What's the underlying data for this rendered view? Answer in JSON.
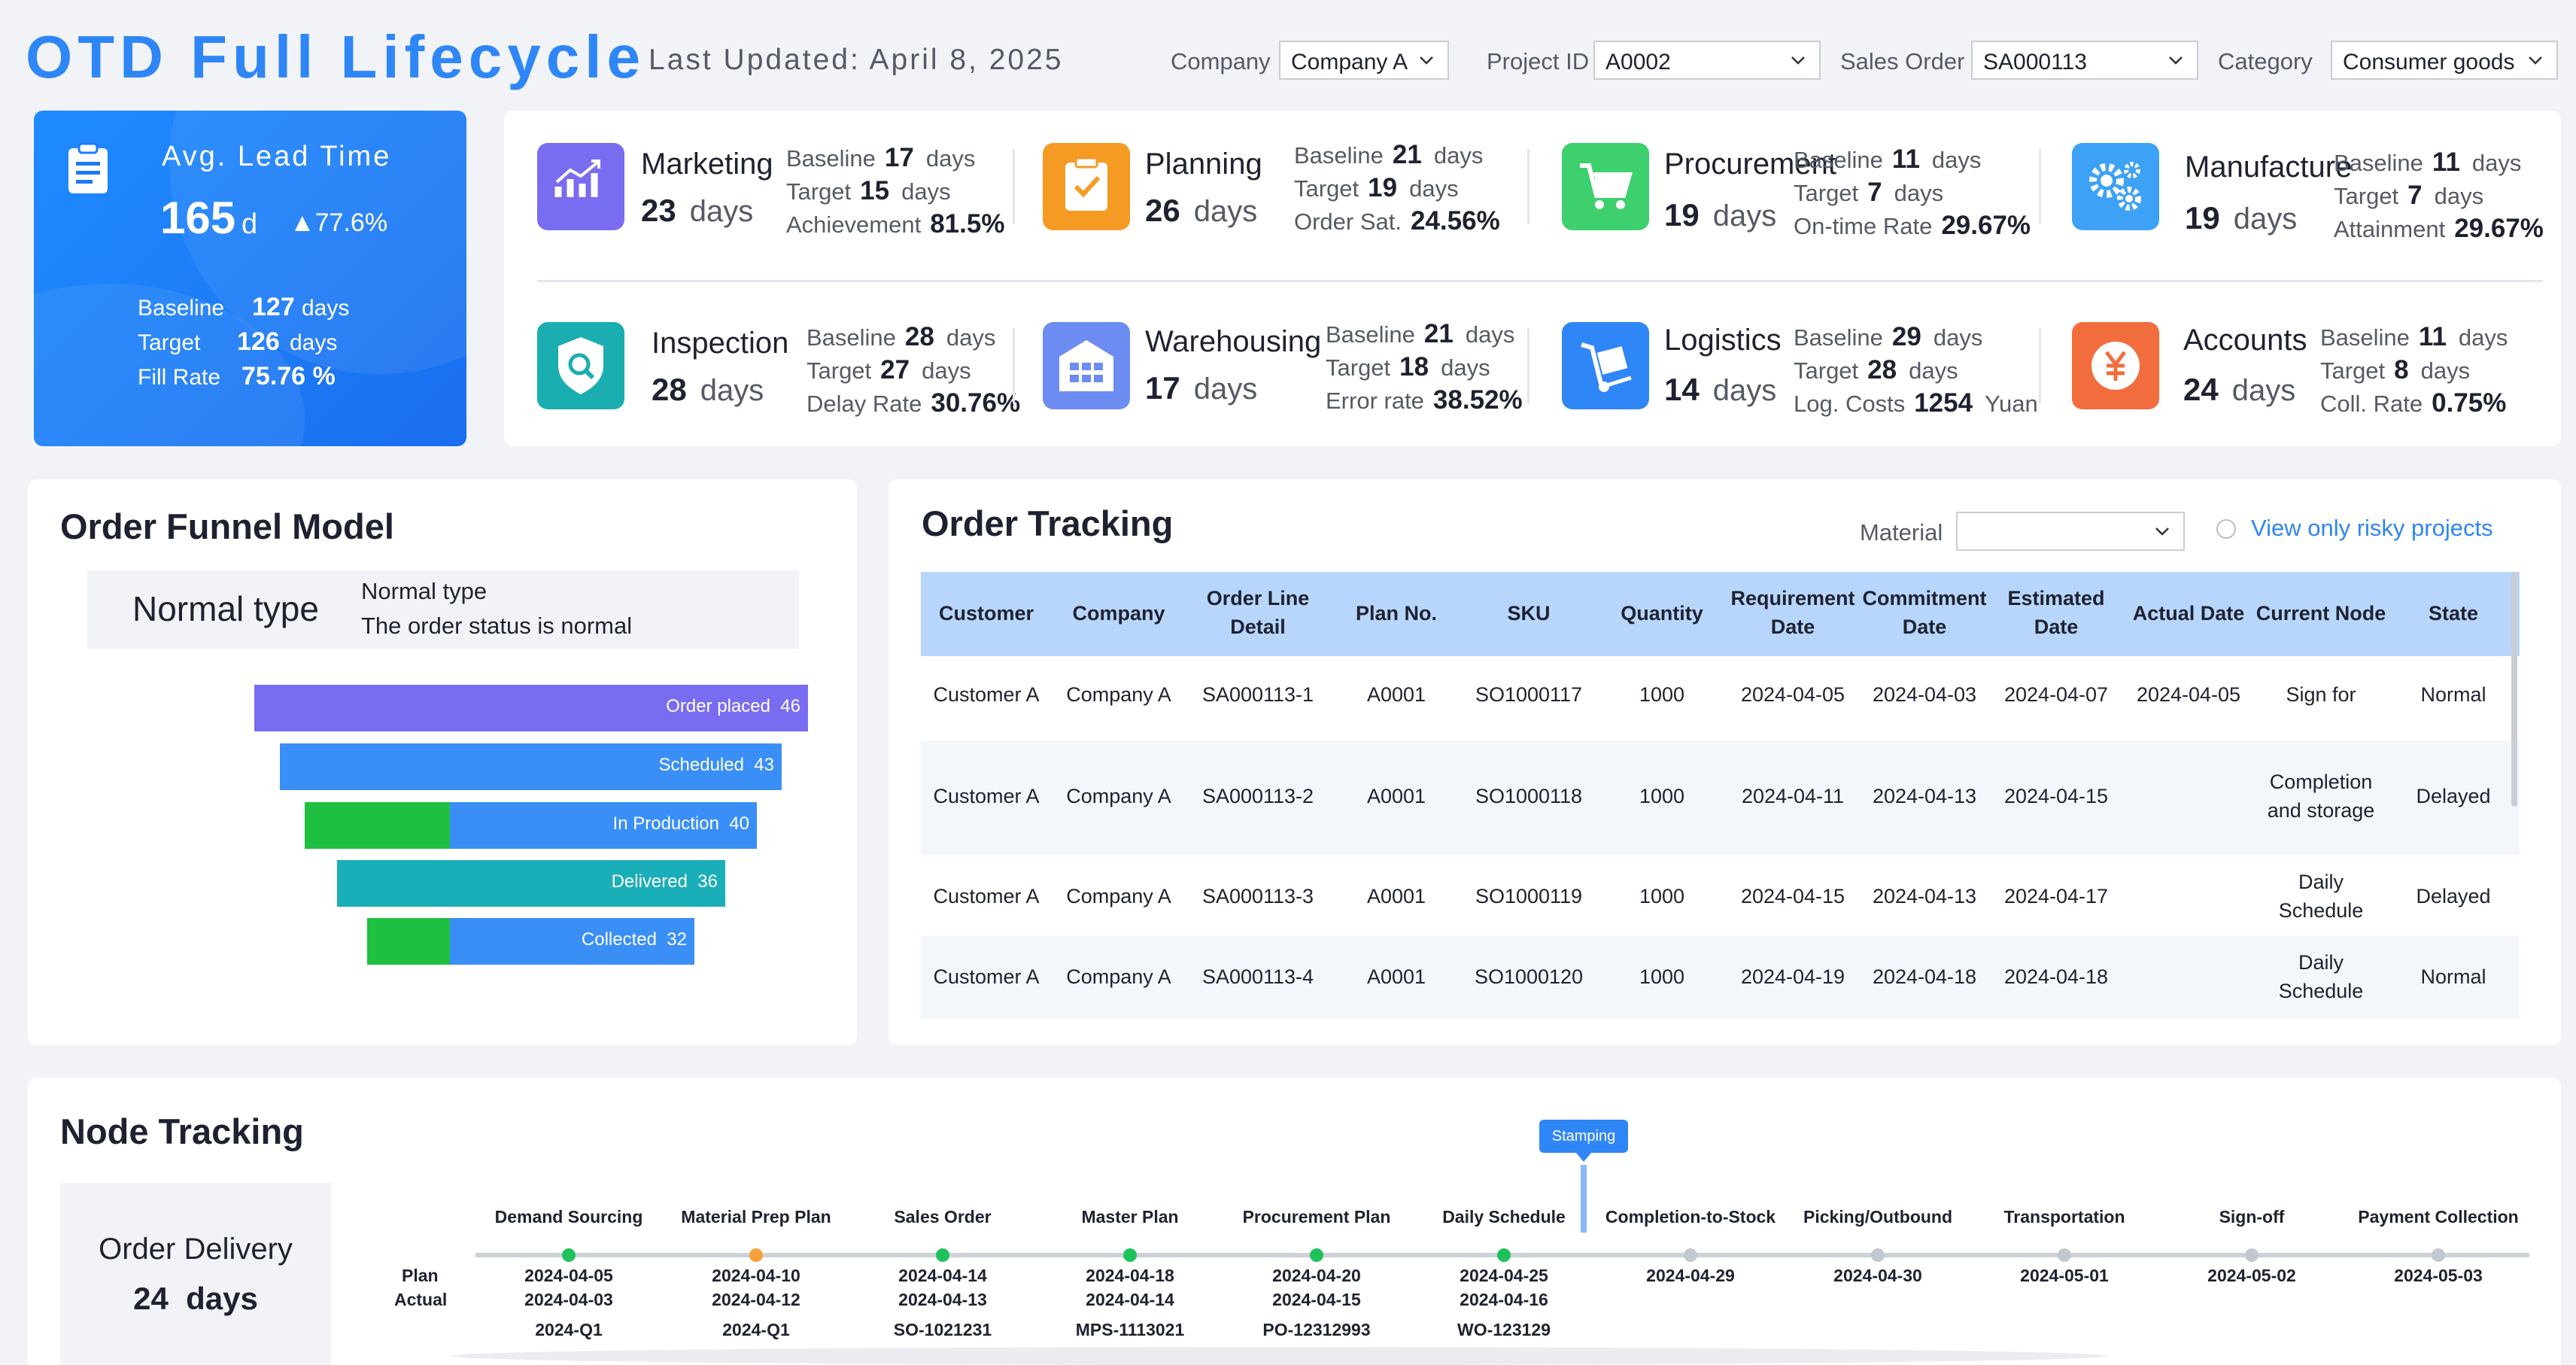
{
  "header": {
    "title": "OTD Full Lifecycle",
    "updated": "Last Updated: April 8, 2025",
    "filters": [
      {
        "label": "Company",
        "value": "Company A"
      },
      {
        "label": "Project ID",
        "value": "A0002"
      },
      {
        "label": "Sales Order",
        "value": "SA000113"
      },
      {
        "label": "Category",
        "value": "Consumer goods"
      }
    ]
  },
  "lead": {
    "title": "Avg. Lead Time",
    "value": "165",
    "unit": "d",
    "trend": "▲77.6%",
    "baseline_label": "Baseline",
    "baseline_value": "127",
    "baseline_unit": "days",
    "target_label": "Target",
    "target_value": "126",
    "target_unit": "days",
    "fill_label": "Fill Rate",
    "fill_value": "75.76 %"
  },
  "metrics": [
    {
      "name": "Marketing",
      "value": "23",
      "unit": "days",
      "icon": "chart-icon",
      "color": "#7a6cf0",
      "l1": "Baseline",
      "v1": "17",
      "u1": "days",
      "l2": "Target",
      "v2": "15",
      "u2": "days",
      "l3": "Achievement",
      "v3": "81.5%"
    },
    {
      "name": "Planning",
      "value": "26",
      "unit": "days",
      "icon": "clipboard-check-icon",
      "color": "#f59a23",
      "l1": "Baseline",
      "v1": "21",
      "u1": "days",
      "l2": "Target",
      "v2": "19",
      "u2": "days",
      "l3": "Order Sat.",
      "v3": "24.56%"
    },
    {
      "name": "Procurement",
      "value": "19",
      "unit": "days",
      "icon": "cart-icon",
      "color": "#3ecf6e",
      "l1": "Baseline",
      "v1": "11",
      "u1": "days",
      "l2": "Target",
      "v2": "7",
      "u2": "days",
      "l3": "On-time Rate",
      "v3": "29.67%"
    },
    {
      "name": "Manufacture",
      "value": "19",
      "unit": "days",
      "icon": "gears-icon",
      "color": "#3da2f5",
      "l1": "Baseline",
      "v1": "11",
      "u1": "days",
      "l2": "Target",
      "v2": "7",
      "u2": "days",
      "l3": "Attainment",
      "v3": "29.67%"
    },
    {
      "name": "Inspection",
      "value": "28",
      "unit": "days",
      "icon": "shield-search-icon",
      "color": "#1aaeb0",
      "l1": "Baseline",
      "v1": "28",
      "u1": "days",
      "l2": "Target",
      "v2": "27",
      "u2": "days",
      "l3": "Delay Rate",
      "v3": "30.76%"
    },
    {
      "name": "Warehousing",
      "value": "17",
      "unit": "days",
      "icon": "warehouse-icon",
      "color": "#6c8cf2",
      "l1": "Baseline",
      "v1": "21",
      "u1": "days",
      "l2": "Target",
      "v2": "18",
      "u2": "days",
      "l3": "Error rate",
      "v3": "38.52%"
    },
    {
      "name": "Logistics",
      "value": "14",
      "unit": "days",
      "icon": "cart-box-icon",
      "color": "#2f86f6",
      "l1": "Baseline",
      "v1": "29",
      "u1": "days",
      "l2": "Target",
      "v2": "28",
      "u2": "days",
      "l3": "Log. Costs",
      "v3": "1254",
      "u3": "Yuan"
    },
    {
      "name": "Accounts",
      "value": "24",
      "unit": "days",
      "icon": "yen-icon",
      "color": "#f26d3d",
      "l1": "Baseline",
      "v1": "11",
      "u1": "days",
      "l2": "Target",
      "v2": "8",
      "u2": "days",
      "l3": "Coll. Rate",
      "v3": "0.75%"
    }
  ],
  "funnel": {
    "title": "Order Funnel Model",
    "type_label": "Normal type",
    "type_title": "Normal type",
    "type_desc": "The order status is normal",
    "chart_data": {
      "type": "bar",
      "categories": [
        "Order placed",
        "Scheduled",
        "In Production",
        "Delivered",
        "Collected"
      ],
      "values": [
        46,
        43,
        40,
        36,
        32
      ],
      "colors": [
        "#7a6cf0",
        "#3a8ff7",
        "#3a8ff7",
        "#1aaeb8",
        "#3a8ff7"
      ]
    }
  },
  "tracking": {
    "title": "Order Tracking",
    "material_label": "Material",
    "material_value": "",
    "risky_label": "View only risky projects",
    "columns": [
      [
        "Customer"
      ],
      [
        "Company"
      ],
      [
        "Order Line",
        "Detail"
      ],
      [
        "Plan No."
      ],
      [
        "SKU"
      ],
      [
        "Quantity"
      ],
      [
        "Requirement",
        "Date"
      ],
      [
        "Commitment",
        "Date"
      ],
      [
        "Estimated",
        "Date"
      ],
      [
        "Actual Date"
      ],
      [
        "Current Node"
      ],
      [
        "State"
      ]
    ],
    "rows": [
      [
        [
          "Customer A"
        ],
        [
          "Company A"
        ],
        [
          "SA000113-1"
        ],
        [
          "A0001"
        ],
        [
          "SO1000117"
        ],
        [
          "1000"
        ],
        [
          "2024-04-05"
        ],
        [
          "2024-04-03"
        ],
        [
          "2024-04-07"
        ],
        [
          "2024-04-05"
        ],
        [
          "Sign for"
        ],
        [
          "Normal"
        ]
      ],
      [
        [
          "Customer A"
        ],
        [
          "Company A"
        ],
        [
          "SA000113-2"
        ],
        [
          "A0001"
        ],
        [
          "SO1000118"
        ],
        [
          "1000"
        ],
        [
          "2024-04-11"
        ],
        [
          "2024-04-13"
        ],
        [
          "2024-04-15"
        ],
        [
          ""
        ],
        [
          "Completion",
          "and storage"
        ],
        [
          "Delayed"
        ]
      ],
      [
        [
          "Customer A"
        ],
        [
          "Company A"
        ],
        [
          "SA000113-3"
        ],
        [
          "A0001"
        ],
        [
          "SO1000119"
        ],
        [
          "1000"
        ],
        [
          "2024-04-15"
        ],
        [
          "2024-04-13"
        ],
        [
          "2024-04-17"
        ],
        [
          ""
        ],
        [
          "Daily",
          "Schedule"
        ],
        [
          "Delayed"
        ]
      ],
      [
        [
          "Customer A"
        ],
        [
          "Company A"
        ],
        [
          "SA000113-4"
        ],
        [
          "A0001"
        ],
        [
          "SO1000120"
        ],
        [
          "1000"
        ],
        [
          "2024-04-19"
        ],
        [
          "2024-04-18"
        ],
        [
          "2024-04-18"
        ],
        [
          ""
        ],
        [
          "Daily",
          "Schedule"
        ],
        [
          "Normal"
        ]
      ]
    ]
  },
  "nodes": {
    "title": "Node Tracking",
    "delivery_label": "Order Delivery",
    "delivery_value": "24  days",
    "plan_label": "Plan",
    "actual_label": "Actual",
    "marker_label": "Stamping",
    "items": [
      {
        "name": "Demand Sourcing",
        "plan": "2024-04-05",
        "actual": "2024-04-03",
        "ref": "2024-Q1",
        "status": "#1fc25a"
      },
      {
        "name": "Material Prep Plan",
        "plan": "2024-04-10",
        "actual": "2024-04-12",
        "ref": "2024-Q1",
        "status": "#f5a13a"
      },
      {
        "name": "Sales Order",
        "plan": "2024-04-14",
        "actual": "2024-04-13",
        "ref": "SO-1021231",
        "status": "#1fc25a"
      },
      {
        "name": "Master Plan",
        "plan": "2024-04-18",
        "actual": "2024-04-14",
        "ref": "MPS-1113021",
        "status": "#1fc25a"
      },
      {
        "name": "Procurement Plan",
        "plan": "2024-04-20",
        "actual": "2024-04-15",
        "ref": "PO-12312993",
        "status": "#1fc25a"
      },
      {
        "name": "Daily Schedule",
        "plan": "2024-04-25",
        "actual": "2024-04-16",
        "ref": "WO-123129",
        "status": "#1fc25a"
      },
      {
        "name": "Completion-to-Stock",
        "plan": "2024-04-29",
        "actual": "",
        "ref": "",
        "status": "#c3c8d0"
      },
      {
        "name": "Picking/Outbound",
        "plan": "2024-04-30",
        "actual": "",
        "ref": "",
        "status": "#c3c8d0"
      },
      {
        "name": "Transportation",
        "plan": "2024-05-01",
        "actual": "",
        "ref": "",
        "status": "#c3c8d0"
      },
      {
        "name": "Sign-off",
        "plan": "2024-05-02",
        "actual": "",
        "ref": "",
        "status": "#c3c8d0"
      },
      {
        "name": "Payment Collection",
        "plan": "2024-05-03",
        "actual": "",
        "ref": "",
        "status": "#c3c8d0"
      }
    ]
  }
}
